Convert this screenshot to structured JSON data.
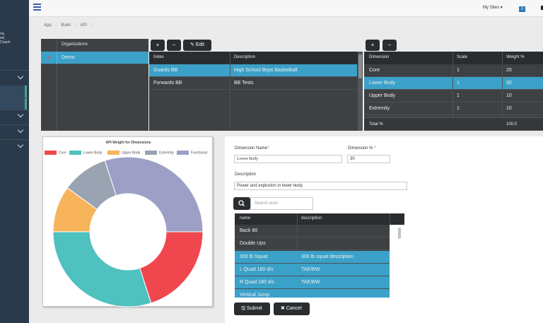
{
  "sidebar": {
    "snippet_1": "na,",
    "snippet_2": "ed,",
    "snippet_3": "Coach"
  },
  "topbar": {
    "my_sites_label": "My Sites",
    "notification_count": "0"
  },
  "breadcrumb": [
    "App",
    "Build",
    "API"
  ],
  "organizations": {
    "header": "Organizations",
    "items": [
      {
        "name": "Demo",
        "selected": true
      }
    ]
  },
  "index_toolbar": {
    "add_label": "+",
    "remove_label": "−",
    "edit_label": "Edit"
  },
  "index_grid": {
    "columns": [
      "Index",
      "Description"
    ],
    "rows": [
      {
        "index": "Guards BB",
        "description": "High School Boys Basketball",
        "selected": true
      },
      {
        "index": "Forwards BB",
        "description": "BB Tests",
        "selected": false
      }
    ]
  },
  "dimension_toolbar": {
    "add_label": "+",
    "remove_label": "−"
  },
  "dimension_grid": {
    "columns": [
      "Dimension",
      "Scale",
      "Weight %"
    ],
    "rows": [
      {
        "dimension": "Core",
        "scale": "1",
        "weight": "20",
        "selected": false
      },
      {
        "dimension": "Lower Body",
        "scale": "1",
        "weight": "30",
        "selected": true
      },
      {
        "dimension": "Upper Body",
        "scale": "1",
        "weight": "10",
        "selected": false
      },
      {
        "dimension": "Extremity",
        "scale": "1",
        "weight": "10",
        "selected": false
      }
    ],
    "total_label": "Total %",
    "total_value": "100.0"
  },
  "chart_data": {
    "type": "pie",
    "title": "API Weight for Dimensions",
    "categories": [
      "Core",
      "Lower Body",
      "Upper Body",
      "Extremity",
      "Functional"
    ],
    "values": [
      20,
      30,
      10,
      10,
      30
    ],
    "colors": [
      "#f0474e",
      "#4fc1bf",
      "#f8b45a",
      "#9aa3b2",
      "#9d9fc6"
    ],
    "legend_position": "top"
  },
  "form": {
    "dimension_name_label": "Dimension Name",
    "dimension_name_value": "Lower Body",
    "dimension_pct_label": "Dimension %",
    "dimension_pct_value": "30",
    "description_label": "Description",
    "description_value": "Power and explosion in lower body.",
    "search_placeholder": "Search tests",
    "search_icon": "search-icon",
    "tests_columns": [
      "name",
      "description"
    ],
    "tests": [
      {
        "name": "Back 80",
        "description": "",
        "selected": false
      },
      {
        "name": "Double Ups",
        "description": "",
        "selected": false
      },
      {
        "name": "300 lb Squat",
        "description": "300 lb squat description",
        "selected": true
      },
      {
        "name": "L Quad 180 d/s",
        "description": "TAE/BW",
        "selected": true
      },
      {
        "name": "R Quad 180 d/s",
        "description": "TAE/BW",
        "selected": true
      },
      {
        "name": "Vertical Jump",
        "description": "",
        "selected": true
      }
    ],
    "submit_label": "Submit",
    "cancel_label": "Cancel"
  }
}
